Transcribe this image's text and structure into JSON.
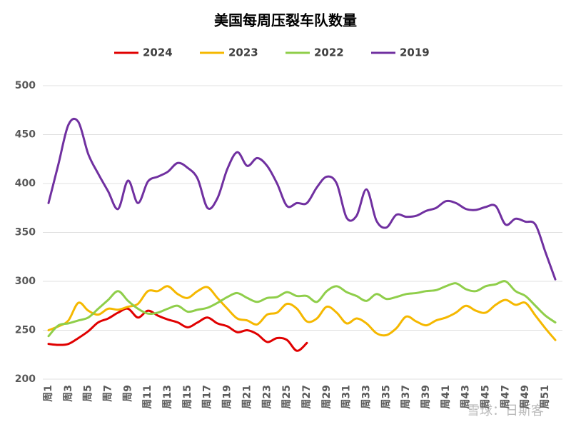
{
  "chart_data": {
    "type": "line",
    "title": "美国每周压裂车队数量",
    "watermark": "雪球：日斯客",
    "categories": [
      "周1",
      null,
      "周3",
      null,
      "周5",
      null,
      "周7",
      null,
      "周9",
      null,
      "周11",
      null,
      "周13",
      null,
      "周15",
      null,
      "周17",
      null,
      "周19",
      null,
      "周21",
      null,
      "周23",
      null,
      "周25",
      null,
      "周27",
      null,
      "周29",
      null,
      "周31",
      null,
      "周33",
      null,
      "周35",
      null,
      "周37",
      null,
      "周39",
      null,
      "周41",
      null,
      "周43",
      null,
      "周45",
      null,
      "周47",
      null,
      "周49",
      null,
      "周51",
      null
    ],
    "series": [
      {
        "name": "2024",
        "color": "#e00000",
        "values": [
          236,
          235,
          236,
          242,
          249,
          258,
          262,
          268,
          272,
          263,
          270,
          265,
          261,
          258,
          253,
          258,
          263,
          257,
          254,
          248,
          250,
          246,
          238,
          242,
          240,
          229,
          237,
          null,
          null,
          null,
          null,
          null,
          null,
          null,
          null,
          null,
          null,
          null,
          null,
          null,
          null,
          null,
          null,
          null,
          null,
          null,
          null,
          null,
          null,
          null,
          null,
          null
        ]
      },
      {
        "name": "2023",
        "color": "#f5b800",
        "values": [
          250,
          254,
          260,
          278,
          270,
          266,
          272,
          271,
          274,
          277,
          290,
          290,
          295,
          287,
          283,
          290,
          294,
          283,
          272,
          262,
          260,
          256,
          266,
          268,
          277,
          272,
          259,
          262,
          274,
          268,
          257,
          262,
          257,
          247,
          245,
          252,
          264,
          259,
          255,
          260,
          263,
          268,
          275,
          270,
          268,
          276,
          281,
          276,
          278,
          265,
          252,
          240
        ]
      },
      {
        "name": "2022",
        "color": "#8fce4a",
        "values": [
          244,
          255,
          257,
          260,
          263,
          272,
          281,
          290,
          280,
          272,
          267,
          268,
          272,
          275,
          269,
          271,
          273,
          278,
          284,
          288,
          283,
          279,
          283,
          284,
          289,
          285,
          285,
          279,
          290,
          295,
          289,
          285,
          280,
          287,
          282,
          284,
          287,
          288,
          290,
          291,
          295,
          298,
          292,
          290,
          295,
          297,
          300,
          290,
          285,
          275,
          265,
          258
        ]
      },
      {
        "name": "2019",
        "color": "#7030a0",
        "values": [
          380,
          420,
          460,
          463,
          430,
          410,
          392,
          374,
          403,
          380,
          402,
          407,
          412,
          421,
          416,
          405,
          375,
          385,
          415,
          432,
          418,
          426,
          418,
          400,
          377,
          380,
          380,
          396,
          407,
          400,
          365,
          367,
          394,
          362,
          355,
          368,
          366,
          367,
          372,
          375,
          382,
          380,
          374,
          373,
          376,
          377,
          358,
          364,
          361,
          358,
          330,
          302
        ]
      }
    ],
    "ylim": [
      200,
      500
    ],
    "yticks": [
      200,
      250,
      300,
      350,
      400,
      450,
      500
    ],
    "grid": true
  }
}
